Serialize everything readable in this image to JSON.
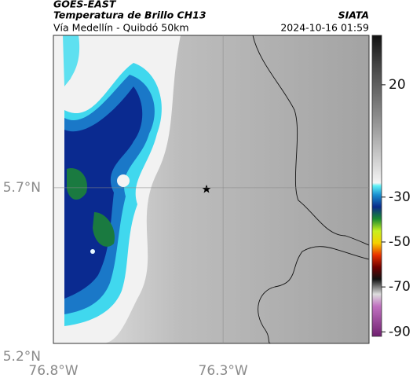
{
  "header": {
    "source": "GOES-EAST",
    "title": "Temperatura de Brillo CH13",
    "subtitle": "Vía Medellín - Quibdó 50km",
    "org": "SIATA",
    "timestamp": "2024-10-16 01:59"
  },
  "chart_data": {
    "type": "map",
    "xlim": [
      -76.8,
      -75.87
    ],
    "ylim": [
      5.24,
      6.15
    ],
    "xticks": [
      {
        "value": -76.8,
        "label": "76.8°W"
      },
      {
        "value": -76.3,
        "label": "76.3°W"
      }
    ],
    "yticks": [
      {
        "value": 5.2,
        "label": "5.2°N"
      },
      {
        "value": 5.7,
        "label": "5.7°N"
      }
    ],
    "grid": true,
    "colorbar": {
      "lim": [
        -92,
        42
      ],
      "ticks": [
        20,
        -30,
        -50,
        -70,
        -90
      ]
    }
  }
}
